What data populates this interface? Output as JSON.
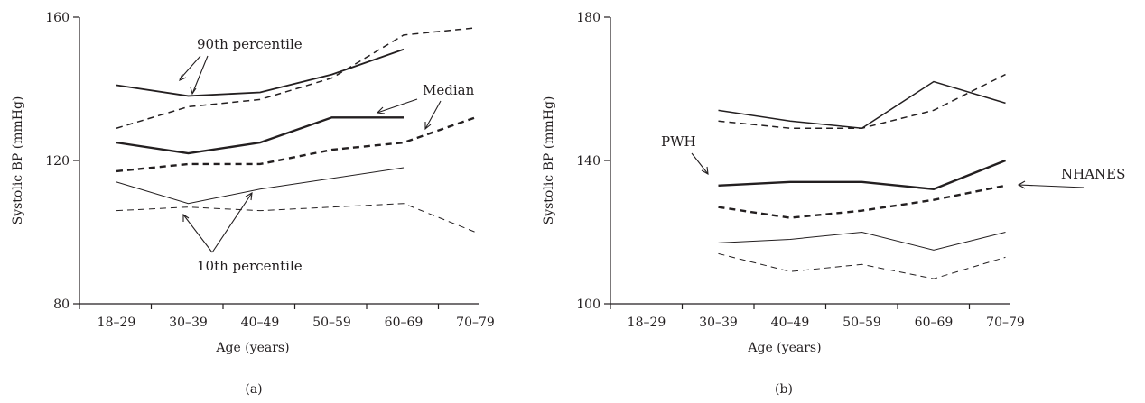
{
  "chart_data": [
    {
      "type": "line",
      "panel_label": "(a)",
      "xlabel": "Age (years)",
      "ylabel": "Systolic BP (mmHg)",
      "categories": [
        "18–29",
        "30–39",
        "40–49",
        "50–59",
        "60–69",
        "70–79"
      ],
      "y_ticks": [
        "80",
        "120",
        "160"
      ],
      "ylim": [
        80,
        160
      ],
      "annotations": [
        "90th percentile",
        "Median",
        "10th percentile"
      ],
      "series": [
        {
          "style": "solid-thick",
          "values": [
            141,
            138,
            139,
            144,
            151,
            null
          ]
        },
        {
          "style": "dashed-medium",
          "values": [
            129,
            135,
            137,
            143,
            155,
            157
          ]
        },
        {
          "style": "solid-bold",
          "values": [
            125,
            122,
            125,
            132,
            132,
            null
          ]
        },
        {
          "style": "dashed-bold",
          "values": [
            117,
            119,
            119,
            123,
            125,
            132
          ]
        },
        {
          "style": "solid-thin",
          "values": [
            114,
            108,
            112,
            115,
            118,
            null
          ]
        },
        {
          "style": "dashed-thin",
          "values": [
            106,
            107,
            106,
            107,
            108,
            100
          ]
        }
      ]
    },
    {
      "type": "line",
      "panel_label": "(b)",
      "xlabel": "Age (years)",
      "ylabel": "Systolic BP (mmHg)",
      "categories": [
        "18–29",
        "30–39",
        "40–49",
        "50–59",
        "60–69",
        "70–79"
      ],
      "y_ticks": [
        "100",
        "140",
        "180"
      ],
      "ylim": [
        100,
        180
      ],
      "annotations": [
        "PWH",
        "NHANES"
      ],
      "series": [
        {
          "style": "solid-medium",
          "values": [
            null,
            154,
            151,
            149,
            162,
            156
          ]
        },
        {
          "style": "dashed-medium",
          "values": [
            null,
            151,
            149,
            149,
            154,
            164
          ]
        },
        {
          "style": "solid-bold",
          "values": [
            null,
            133,
            134,
            134,
            132,
            140
          ]
        },
        {
          "style": "dashed-bold",
          "values": [
            null,
            127,
            124,
            126,
            129,
            133
          ]
        },
        {
          "style": "solid-thin",
          "values": [
            null,
            117,
            118,
            120,
            115,
            120
          ]
        },
        {
          "style": "dashed-thin",
          "values": [
            null,
            114,
            109,
            111,
            107,
            113
          ]
        }
      ]
    }
  ]
}
